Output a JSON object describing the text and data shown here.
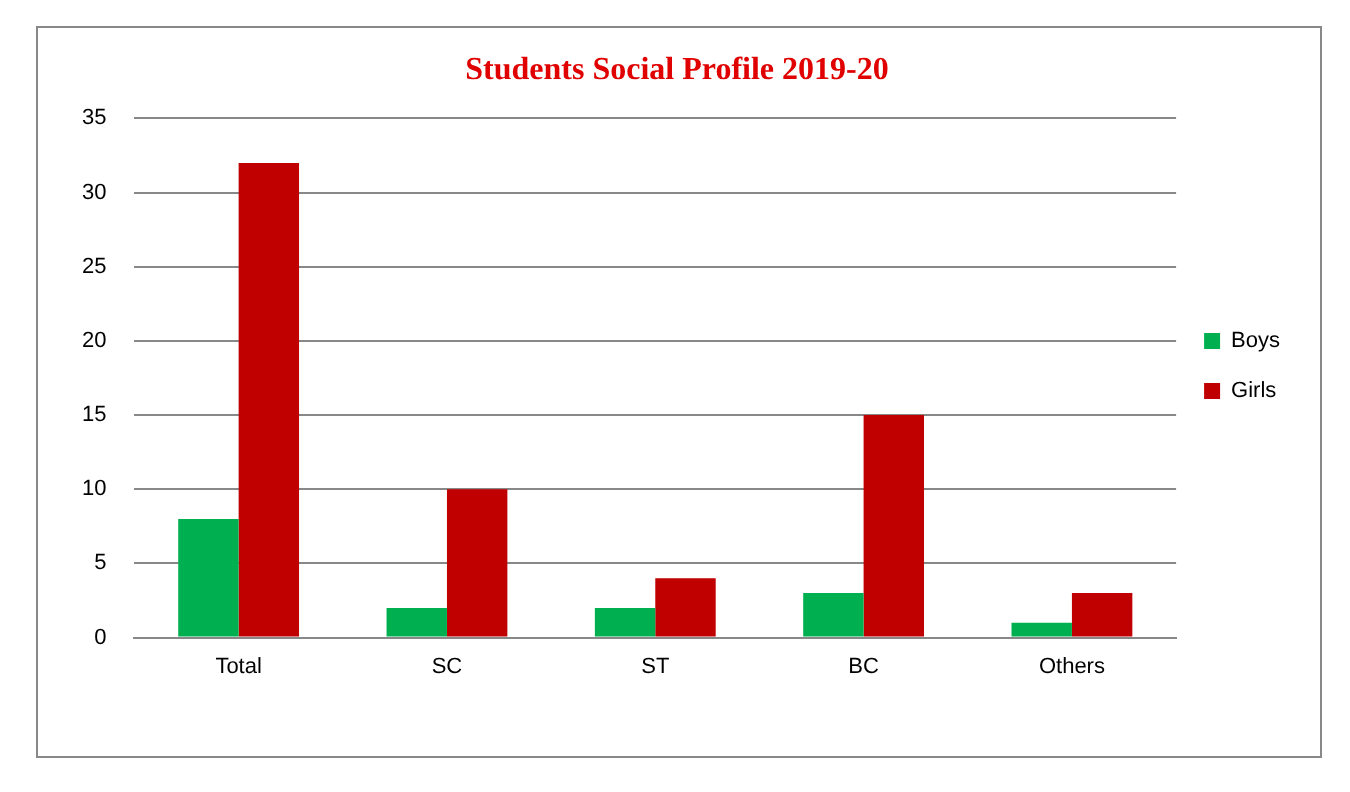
{
  "chart_data": {
    "type": "bar",
    "title": "Students Social Profile 2019-20",
    "categories": [
      "Total",
      "SC",
      "ST",
      "BC",
      "Others"
    ],
    "series": [
      {
        "name": "Boys",
        "color": "#00b050",
        "values": [
          8,
          2,
          2,
          3,
          1
        ]
      },
      {
        "name": "Girls",
        "color": "#c00000",
        "values": [
          32,
          10,
          4,
          15,
          3
        ]
      }
    ],
    "ylim": [
      0,
      35
    ],
    "yticks": [
      0,
      5,
      10,
      15,
      20,
      25,
      30,
      35
    ],
    "grid": "y",
    "legend": "right"
  }
}
